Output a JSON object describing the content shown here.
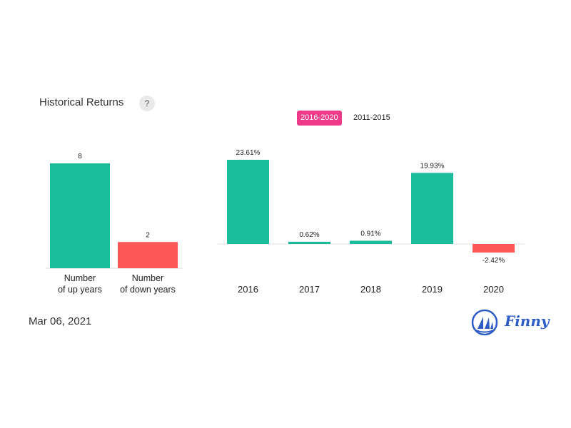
{
  "header": {
    "title": "Historical Returns",
    "help_label": "?"
  },
  "tabs": [
    {
      "label": "2016-2020",
      "active": true
    },
    {
      "label": "2011-2015",
      "active": false
    }
  ],
  "footer": {
    "date": "Mar 06, 2021",
    "brand": "Finny"
  },
  "colors": {
    "up": "#1abc9c",
    "down": "#fe5757",
    "accent": "#ee3a88",
    "brand": "#2d5cc9"
  },
  "chart_data": [
    {
      "type": "bar",
      "categories": [
        [
          "Number",
          "of up years"
        ],
        [
          "Number",
          "of down years"
        ]
      ],
      "values": [
        8,
        2
      ],
      "value_labels": [
        "8",
        "2"
      ],
      "colors": [
        "#1abc9c",
        "#fe5757"
      ],
      "ylim": [
        0,
        8
      ]
    },
    {
      "type": "bar",
      "categories": [
        "2016",
        "2017",
        "2018",
        "2019",
        "2020"
      ],
      "values": [
        23.61,
        0.62,
        0.91,
        19.93,
        -2.42
      ],
      "value_labels": [
        "23.61%",
        "0.62%",
        "0.91%",
        "19.93%",
        "-2.42%"
      ],
      "ylim": [
        -2.42,
        23.61
      ]
    }
  ]
}
